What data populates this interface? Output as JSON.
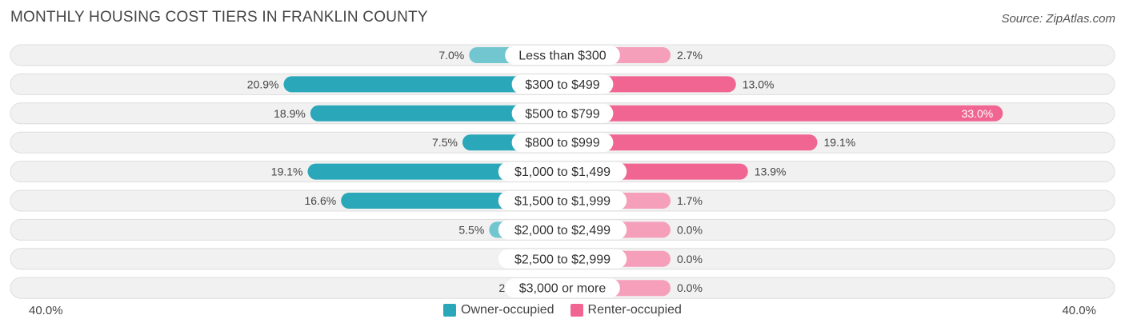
{
  "header": {
    "title": "MONTHLY HOUSING COST TIERS IN FRANKLIN COUNTY",
    "source": "Source: ZipAtlas.com"
  },
  "colors": {
    "owner_strong": "#2aa7b8",
    "owner_light": "#72c6cf",
    "renter_strong": "#f06592",
    "renter_light": "#f59fbb",
    "row_bg": "#f1f1f1",
    "row_border": "#dedede"
  },
  "axis": {
    "left_label": "40.0%",
    "right_label": "40.0%"
  },
  "legend": {
    "owner_label": "Owner-occupied",
    "renter_label": "Renter-occupied"
  },
  "chart_data": {
    "type": "bar",
    "orientation": "horizontal-diverging",
    "title": "MONTHLY HOUSING COST TIERS IN FRANKLIN COUNTY",
    "xlim": [
      -40,
      40
    ],
    "categories": [
      "Less than $300",
      "$300 to $499",
      "$500 to $799",
      "$800 to $999",
      "$1,000 to $1,499",
      "$1,500 to $1,999",
      "$2,000 to $2,499",
      "$2,500 to $2,999",
      "$3,000 or more"
    ],
    "series": [
      {
        "name": "Owner-occupied",
        "values": [
          7.0,
          20.9,
          18.9,
          7.5,
          19.1,
          16.6,
          5.5,
          2.0,
          2.5
        ],
        "labels": [
          "7.0%",
          "20.9%",
          "18.9%",
          "7.5%",
          "19.1%",
          "16.6%",
          "5.5%",
          "2.0%",
          "2.5%"
        ]
      },
      {
        "name": "Renter-occupied",
        "values": [
          2.7,
          13.0,
          33.0,
          19.1,
          13.9,
          1.7,
          0.0,
          0.0,
          0.0
        ],
        "labels": [
          "2.7%",
          "13.0%",
          "33.0%",
          "19.1%",
          "13.9%",
          "1.7%",
          "0.0%",
          "0.0%",
          "0.0%"
        ]
      }
    ]
  }
}
